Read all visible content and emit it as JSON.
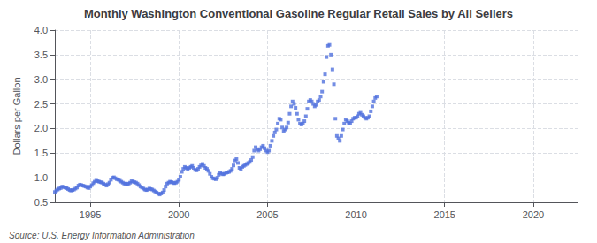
{
  "chart_data": {
    "type": "scatter",
    "title": "Monthly Washington Conventional Gasoline Regular Retail Sales by All Sellers",
    "ylabel": "Dollars per Gallon",
    "annotations": [
      "Source: U.S. Energy Information Administration"
    ],
    "marker": "square",
    "grid": true,
    "xlim": [
      1993.0,
      2022.5
    ],
    "ylim": [
      0.5,
      4.0
    ],
    "xticks": [
      1995,
      2000,
      2005,
      2010,
      2015,
      2020
    ],
    "yticks": [
      0.5,
      {
        "value": 1.0,
        "label": "1.0"
      },
      1.5,
      {
        "value": 2.0,
        "label": "2.0"
      },
      2.5,
      {
        "value": 3.0,
        "label": "3.0"
      },
      3.5,
      {
        "value": 4.0,
        "label": "4.0"
      }
    ],
    "x": [
      1993,
      1993.0833333333333,
      1993.1666666666667,
      1993.25,
      1993.3333333333333,
      1993.4166666666667,
      1993.5,
      1993.5833333333333,
      1993.6666666666667,
      1993.75,
      1993.8333333333333,
      1993.9166666666667,
      1994,
      1994.0833333333333,
      1994.1666666666667,
      1994.25,
      1994.3333333333333,
      1994.4166666666667,
      1994.5,
      1994.5833333333333,
      1994.6666666666667,
      1994.75,
      1994.8333333333333,
      1994.9166666666667,
      1995,
      1995.0833333333333,
      1995.1666666666667,
      1995.25,
      1995.3333333333333,
      1995.4166666666667,
      1995.5,
      1995.5833333333333,
      1995.6666666666667,
      1995.75,
      1995.8333333333333,
      1995.9166666666667,
      1996,
      1996.0833333333333,
      1996.1666666666667,
      1996.25,
      1996.3333333333333,
      1996.4166666666667,
      1996.5,
      1996.5833333333333,
      1996.6666666666667,
      1996.75,
      1996.8333333333333,
      1996.9166666666667,
      1997,
      1997.0833333333333,
      1997.1666666666667,
      1997.25,
      1997.3333333333333,
      1997.4166666666667,
      1997.5,
      1997.5833333333333,
      1997.6666666666667,
      1997.75,
      1997.8333333333333,
      1997.9166666666667,
      1998,
      1998.0833333333333,
      1998.1666666666667,
      1998.25,
      1998.3333333333333,
      1998.4166666666667,
      1998.5,
      1998.5833333333333,
      1998.6666666666667,
      1998.75,
      1998.8333333333333,
      1998.9166666666667,
      1999,
      1999.0833333333333,
      1999.1666666666667,
      1999.25,
      1999.3333333333333,
      1999.4166666666667,
      1999.5,
      1999.5833333333333,
      1999.6666666666667,
      1999.75,
      1999.8333333333333,
      1999.9166666666667,
      2000,
      2000.0833333333333,
      2000.1666666666667,
      2000.25,
      2000.3333333333333,
      2000.4166666666667,
      2000.5,
      2000.5833333333333,
      2000.6666666666667,
      2000.75,
      2000.8333333333333,
      2000.9166666666667,
      2001,
      2001.0833333333333,
      2001.1666666666667,
      2001.25,
      2001.3333333333333,
      2001.4166666666667,
      2001.5,
      2001.5833333333333,
      2001.6666666666667,
      2001.75,
      2001.8333333333333,
      2001.9166666666667,
      2002,
      2002.0833333333333,
      2002.1666666666667,
      2002.25,
      2002.3333333333333,
      2002.4166666666667,
      2002.5,
      2002.5833333333333,
      2002.6666666666667,
      2002.75,
      2002.8333333333333,
      2002.9166666666667,
      2003,
      2003.0833333333333,
      2003.1666666666667,
      2003.25,
      2003.3333333333333,
      2003.4166666666667,
      2003.5,
      2003.5833333333333,
      2003.6666666666667,
      2003.75,
      2003.8333333333333,
      2003.9166666666667,
      2004,
      2004.0833333333333,
      2004.1666666666667,
      2004.25,
      2004.3333333333333,
      2004.4166666666667,
      2004.5,
      2004.5833333333333,
      2004.6666666666667,
      2004.75,
      2004.8333333333333,
      2004.9166666666667,
      2005,
      2005.0833333333333,
      2005.1666666666667,
      2005.25,
      2005.3333333333333,
      2005.4166666666667,
      2005.5,
      2005.5833333333333,
      2005.6666666666667,
      2005.75,
      2005.8333333333333,
      2005.9166666666667,
      2006,
      2006.0833333333333,
      2006.1666666666667,
      2006.25,
      2006.3333333333333,
      2006.4166666666667,
      2006.5,
      2006.5833333333333,
      2006.6666666666667,
      2006.75,
      2006.8333333333333,
      2006.9166666666667,
      2007,
      2007.0833333333333,
      2007.1666666666667,
      2007.25,
      2007.3333333333333,
      2007.4166666666667,
      2007.5,
      2007.5833333333333,
      2007.6666666666667,
      2007.75,
      2007.8333333333333,
      2007.9166666666667,
      2008,
      2008.0833333333333,
      2008.1666666666667,
      2008.25,
      2008.3333333333333,
      2008.4166666666667,
      2008.5,
      2008.5833333333333,
      2008.6666666666667,
      2008.75,
      2008.8333333333333,
      2008.9166666666667,
      2009,
      2009.0833333333333,
      2009.1666666666667,
      2009.25,
      2009.3333333333333,
      2009.4166666666667,
      2009.5,
      2009.5833333333333,
      2009.6666666666667,
      2009.75,
      2009.8333333333333,
      2009.9166666666667,
      2010,
      2010.0833333333333,
      2010.1666666666667,
      2010.25,
      2010.3333333333333,
      2010.4166666666667,
      2010.5,
      2010.5833333333333,
      2010.6666666666667,
      2010.75,
      2010.8333333333333,
      2010.9166666666667,
      2011,
      2011.0833333333333,
      2011.1666666666667
    ],
    "values": [
      0.71,
      0.74,
      0.76,
      0.78,
      0.79,
      0.82,
      0.81,
      0.8,
      0.79,
      0.77,
      0.75,
      0.74,
      0.75,
      0.76,
      0.78,
      0.8,
      0.84,
      0.86,
      0.85,
      0.84,
      0.83,
      0.82,
      0.8,
      0.79,
      0.82,
      0.85,
      0.89,
      0.92,
      0.94,
      0.93,
      0.92,
      0.91,
      0.9,
      0.88,
      0.86,
      0.84,
      0.87,
      0.9,
      0.96,
      1.0,
      1.01,
      0.99,
      0.97,
      0.96,
      0.94,
      0.92,
      0.9,
      0.88,
      0.88,
      0.87,
      0.88,
      0.9,
      0.93,
      0.92,
      0.91,
      0.9,
      0.88,
      0.85,
      0.82,
      0.8,
      0.78,
      0.76,
      0.75,
      0.76,
      0.78,
      0.77,
      0.76,
      0.74,
      0.72,
      0.7,
      0.68,
      0.66,
      0.68,
      0.7,
      0.75,
      0.82,
      0.88,
      0.9,
      0.92,
      0.91,
      0.9,
      0.89,
      0.9,
      0.92,
      0.96,
      1.02,
      1.12,
      1.18,
      1.22,
      1.2,
      1.18,
      1.2,
      1.22,
      1.24,
      1.2,
      1.16,
      1.15,
      1.18,
      1.22,
      1.25,
      1.28,
      1.24,
      1.2,
      1.18,
      1.14,
      1.08,
      1.02,
      0.99,
      0.98,
      0.97,
      1.0,
      1.06,
      1.1,
      1.08,
      1.07,
      1.08,
      1.1,
      1.11,
      1.12,
      1.14,
      1.18,
      1.25,
      1.35,
      1.38,
      1.3,
      1.2,
      1.18,
      1.22,
      1.24,
      1.26,
      1.28,
      1.3,
      1.32,
      1.36,
      1.42,
      1.55,
      1.62,
      1.58,
      1.55,
      1.58,
      1.62,
      1.65,
      1.6,
      1.55,
      1.52,
      1.55,
      1.65,
      1.75,
      1.85,
      1.92,
      1.98,
      2.1,
      2.2,
      2.18,
      2.02,
      1.95,
      1.98,
      2.02,
      2.12,
      2.3,
      2.45,
      2.55,
      2.5,
      2.42,
      2.3,
      2.18,
      2.1,
      2.08,
      2.1,
      2.15,
      2.25,
      2.4,
      2.55,
      2.58,
      2.55,
      2.5,
      2.45,
      2.48,
      2.55,
      2.58,
      2.65,
      2.75,
      2.95,
      3.1,
      3.45,
      3.68,
      3.7,
      3.5,
      3.2,
      2.9,
      2.2,
      1.85,
      1.8,
      1.75,
      1.85,
      1.98,
      2.1,
      2.18,
      2.15,
      2.12,
      2.1,
      2.15,
      2.2,
      2.22,
      2.22,
      2.25,
      2.3,
      2.32,
      2.28,
      2.25,
      2.22,
      2.2,
      2.22,
      2.25,
      2.35,
      2.45,
      2.55,
      2.62,
      2.65
    ]
  }
}
